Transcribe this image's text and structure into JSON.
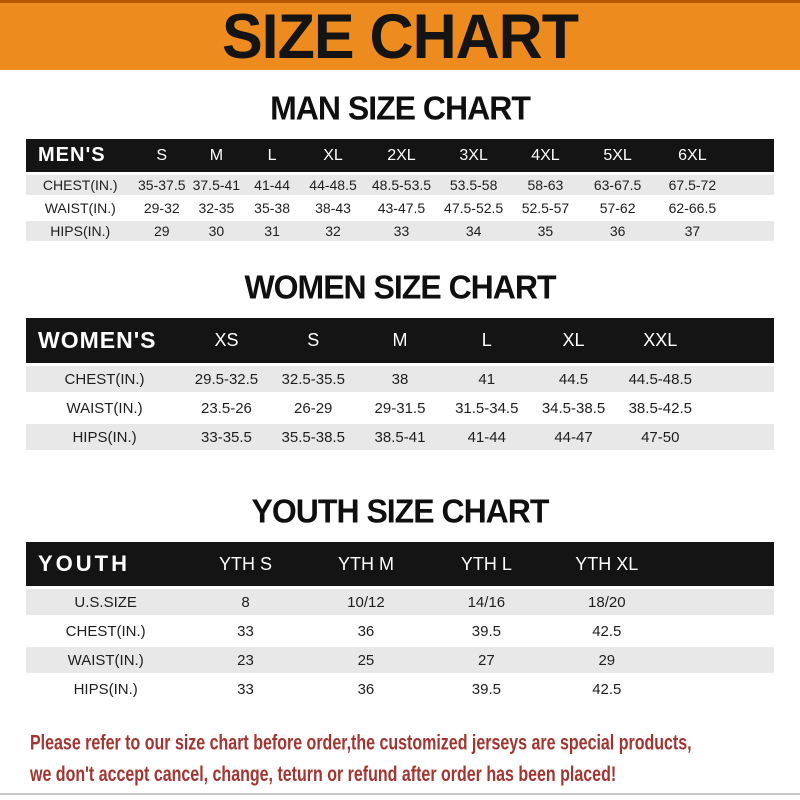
{
  "banner": {
    "title": "SIZE CHART",
    "bg_color": "#ee8b1e",
    "text_color": "#141414"
  },
  "sections": [
    {
      "heading": "MAN SIZE CHART",
      "label": "MEN'S",
      "columns": [
        "S",
        "M",
        "L",
        "XL",
        "2XL",
        "3XL",
        "4XL",
        "5XL",
        "6XL"
      ],
      "rows": [
        {
          "label": "CHEST(IN.)",
          "values": [
            "35-37.5",
            "37.5-41",
            "41-44",
            "44-48.5",
            "48.5-53.5",
            "53.5-58",
            "58-63",
            "63-67.5",
            "67.5-72"
          ]
        },
        {
          "label": "WAIST(IN.)",
          "values": [
            "29-32",
            "32-35",
            "35-38",
            "38-43",
            "43-47.5",
            "47.5-52.5",
            "52.5-57",
            "57-62",
            "62-66.5"
          ]
        },
        {
          "label": "HIPS(IN.)",
          "values": [
            "29",
            "30",
            "31",
            "32",
            "33",
            "34",
            "35",
            "36",
            "37"
          ]
        }
      ]
    },
    {
      "heading": "WOMEN SIZE CHART",
      "label": "WOMEN'S",
      "columns": [
        "XS",
        "S",
        "M",
        "L",
        "XL",
        "XXL"
      ],
      "rows": [
        {
          "label": "CHEST(IN.)",
          "values": [
            "29.5-32.5",
            "32.5-35.5",
            "38",
            "41",
            "44.5",
            "44.5-48.5"
          ]
        },
        {
          "label": "WAIST(IN.)",
          "values": [
            "23.5-26",
            "26-29",
            "29-31.5",
            "31.5-34.5",
            "34.5-38.5",
            "38.5-42.5"
          ]
        },
        {
          "label": "HIPS(IN.)",
          "values": [
            "33-35.5",
            "35.5-38.5",
            "38.5-41",
            "41-44",
            "44-47",
            "47-50"
          ]
        }
      ]
    },
    {
      "heading": "YOUTH SIZE CHART",
      "label": "YOUTH",
      "columns": [
        "YTH S",
        "YTH M",
        "YTH L",
        "YTH XL"
      ],
      "rows": [
        {
          "label": "U.S.SIZE",
          "values": [
            "8",
            "10/12",
            "14/16",
            "18/20"
          ]
        },
        {
          "label": "CHEST(IN.)",
          "values": [
            "33",
            "36",
            "39.5",
            "42.5"
          ]
        },
        {
          "label": "WAIST(IN.)",
          "values": [
            "23",
            "25",
            "27",
            "29"
          ]
        },
        {
          "label": "HIPS(IN.)",
          "values": [
            "33",
            "36",
            "39.5",
            "42.5"
          ]
        }
      ]
    }
  ],
  "footer": {
    "lines": [
      "Please refer to our size chart before order,the customized jerseys are special products,",
      "we don't accept cancel, change, teturn or refund after order has been placed!"
    ],
    "text_color": "#a23531"
  },
  "row_colors": {
    "stripe": "#e8e8e8",
    "header_bar": "#141414"
  }
}
